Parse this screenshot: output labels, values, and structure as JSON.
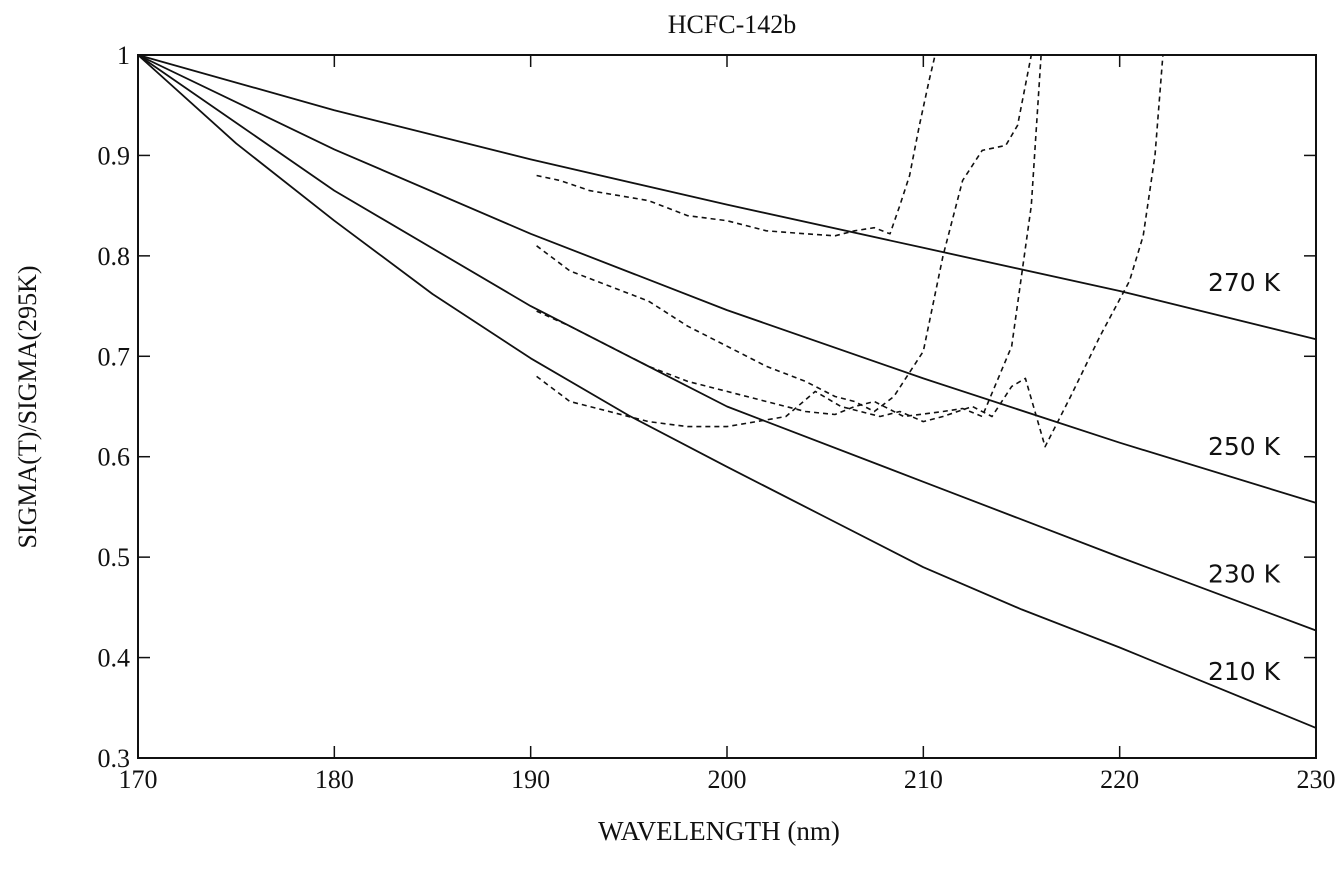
{
  "chart_data": {
    "type": "line",
    "title": "HCFC-142b",
    "xlabel": "WAVELENGTH (nm)",
    "ylabel": "SIGMA(T)/SIGMA(295K)",
    "xlim": [
      170,
      230
    ],
    "ylim": [
      0.3,
      1
    ],
    "x_ticks": [
      "170",
      "180",
      "190",
      "200",
      "210",
      "220",
      "230"
    ],
    "y_ticks": [
      "0.3",
      "0.4",
      "0.5",
      "0.6",
      "0.7",
      "0.8",
      "0.9",
      "1"
    ],
    "grid": false,
    "series": [
      {
        "name": "270 K",
        "style": "solid",
        "x": [
          170,
          180,
          190,
          200,
          210,
          220,
          230
        ],
        "y": [
          1.0,
          0.945,
          0.896,
          0.851,
          0.808,
          0.765,
          0.717
        ]
      },
      {
        "name": "250 K",
        "style": "solid",
        "x": [
          170,
          180,
          190,
          200,
          210,
          220,
          230
        ],
        "y": [
          1.0,
          0.906,
          0.822,
          0.746,
          0.678,
          0.614,
          0.554
        ]
      },
      {
        "name": "230 K",
        "style": "solid",
        "x": [
          170,
          180,
          190,
          200,
          210,
          220,
          230
        ],
        "y": [
          1.0,
          0.865,
          0.75,
          0.65,
          0.575,
          0.5,
          0.427
        ]
      },
      {
        "name": "210 K",
        "style": "solid",
        "x": [
          170,
          175,
          180,
          185,
          190,
          195,
          200,
          205,
          210,
          215,
          220,
          225,
          230
        ],
        "y": [
          1.0,
          0.912,
          0.835,
          0.762,
          0.698,
          0.641,
          0.59,
          0.54,
          0.49,
          0.448,
          0.41,
          0.37,
          0.33
        ]
      },
      {
        "style": "dashed",
        "x": [
          190.3,
          191.5,
          193,
          194.5,
          196,
          198,
          200,
          202,
          204,
          205.5,
          206.5,
          207.5,
          208.3,
          208.8,
          209.3,
          209.8,
          210.3,
          210.6
        ],
        "y": [
          0.88,
          0.875,
          0.865,
          0.86,
          0.855,
          0.84,
          0.835,
          0.825,
          0.822,
          0.82,
          0.825,
          0.828,
          0.822,
          0.85,
          0.88,
          0.93,
          0.975,
          1.0
        ]
      },
      {
        "style": "dashed",
        "x": [
          190.3,
          192,
          194,
          196,
          198,
          200,
          202,
          204,
          205.5,
          206.5,
          207.5,
          208.5,
          210,
          211,
          212,
          213,
          214.2,
          214.8,
          215.5
        ],
        "y": [
          0.81,
          0.785,
          0.77,
          0.755,
          0.73,
          0.71,
          0.69,
          0.675,
          0.66,
          0.655,
          0.645,
          0.66,
          0.705,
          0.8,
          0.875,
          0.905,
          0.91,
          0.93,
          1.0
        ]
      },
      {
        "style": "dashed",
        "x": [
          190.3,
          192,
          194,
          196,
          198,
          200,
          202,
          204,
          205.5,
          206.5,
          207.5,
          209,
          211,
          212,
          213,
          214.5,
          215.5,
          216
        ],
        "y": [
          0.745,
          0.73,
          0.71,
          0.69,
          0.675,
          0.665,
          0.655,
          0.645,
          0.642,
          0.65,
          0.655,
          0.64,
          0.645,
          0.648,
          0.64,
          0.71,
          0.85,
          1.0
        ]
      },
      {
        "style": "dashed",
        "x": [
          190.3,
          192,
          194,
          196,
          198,
          200,
          201.5,
          203,
          204.5,
          205.8,
          206.8,
          207.8,
          208.8,
          210,
          211,
          212.5,
          213.5,
          214.5,
          215.2,
          216.2,
          217.5,
          219,
          220.5,
          221.2,
          221.8,
          222.2
        ],
        "y": [
          0.68,
          0.655,
          0.645,
          0.635,
          0.63,
          0.63,
          0.635,
          0.64,
          0.665,
          0.65,
          0.645,
          0.64,
          0.645,
          0.635,
          0.64,
          0.65,
          0.64,
          0.67,
          0.678,
          0.61,
          0.66,
          0.72,
          0.775,
          0.82,
          0.9,
          1.0
        ]
      }
    ]
  }
}
